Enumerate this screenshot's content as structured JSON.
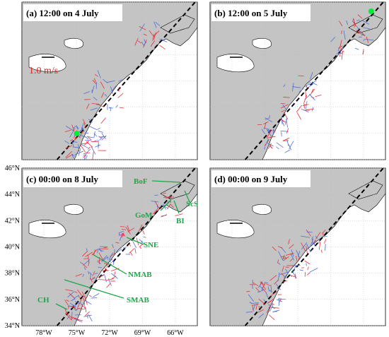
{
  "panels": [
    {
      "id": "a",
      "title": "(a) 12:00 on 4 July",
      "storm": {
        "lon": -75.0,
        "lat": 36.0
      }
    },
    {
      "id": "b",
      "title": "(b) 12:00 on 5 July",
      "storm": {
        "lon": -65.3,
        "lat": 45.3
      }
    },
    {
      "id": "c",
      "title": "(c) 00:00 on 8 July",
      "storm": null
    },
    {
      "id": "d",
      "title": "(d) 00:00 on 9 July",
      "storm": null
    }
  ],
  "axes": {
    "lat_ticks": [
      "34°N",
      "36°N",
      "38°N",
      "40°N",
      "42°N",
      "44°N",
      "46°N"
    ],
    "lon_ticks": [
      "78°W",
      "75°W",
      "72°W",
      "69°W",
      "66°W"
    ],
    "lat_range": [
      34,
      46
    ],
    "lon_range": [
      -80,
      -64
    ]
  },
  "scale": {
    "label": "1.0 m/s"
  },
  "regions": [
    {
      "name": "BoF"
    },
    {
      "name": "GoM"
    },
    {
      "name": "BI"
    },
    {
      "name": "ScS"
    },
    {
      "name": "SNE"
    },
    {
      "name": "NMAB"
    },
    {
      "name": "SMAB"
    },
    {
      "name": "CH"
    }
  ],
  "colors": {
    "land": "#c4c4c4",
    "ocean": "#ffffff",
    "vectors_a": "#e8323c",
    "vectors_b": "#4f6fd6",
    "storm": "#00ee33",
    "track": "#000000",
    "labels": "#1fa64a",
    "scale_text": "#e0201a"
  }
}
